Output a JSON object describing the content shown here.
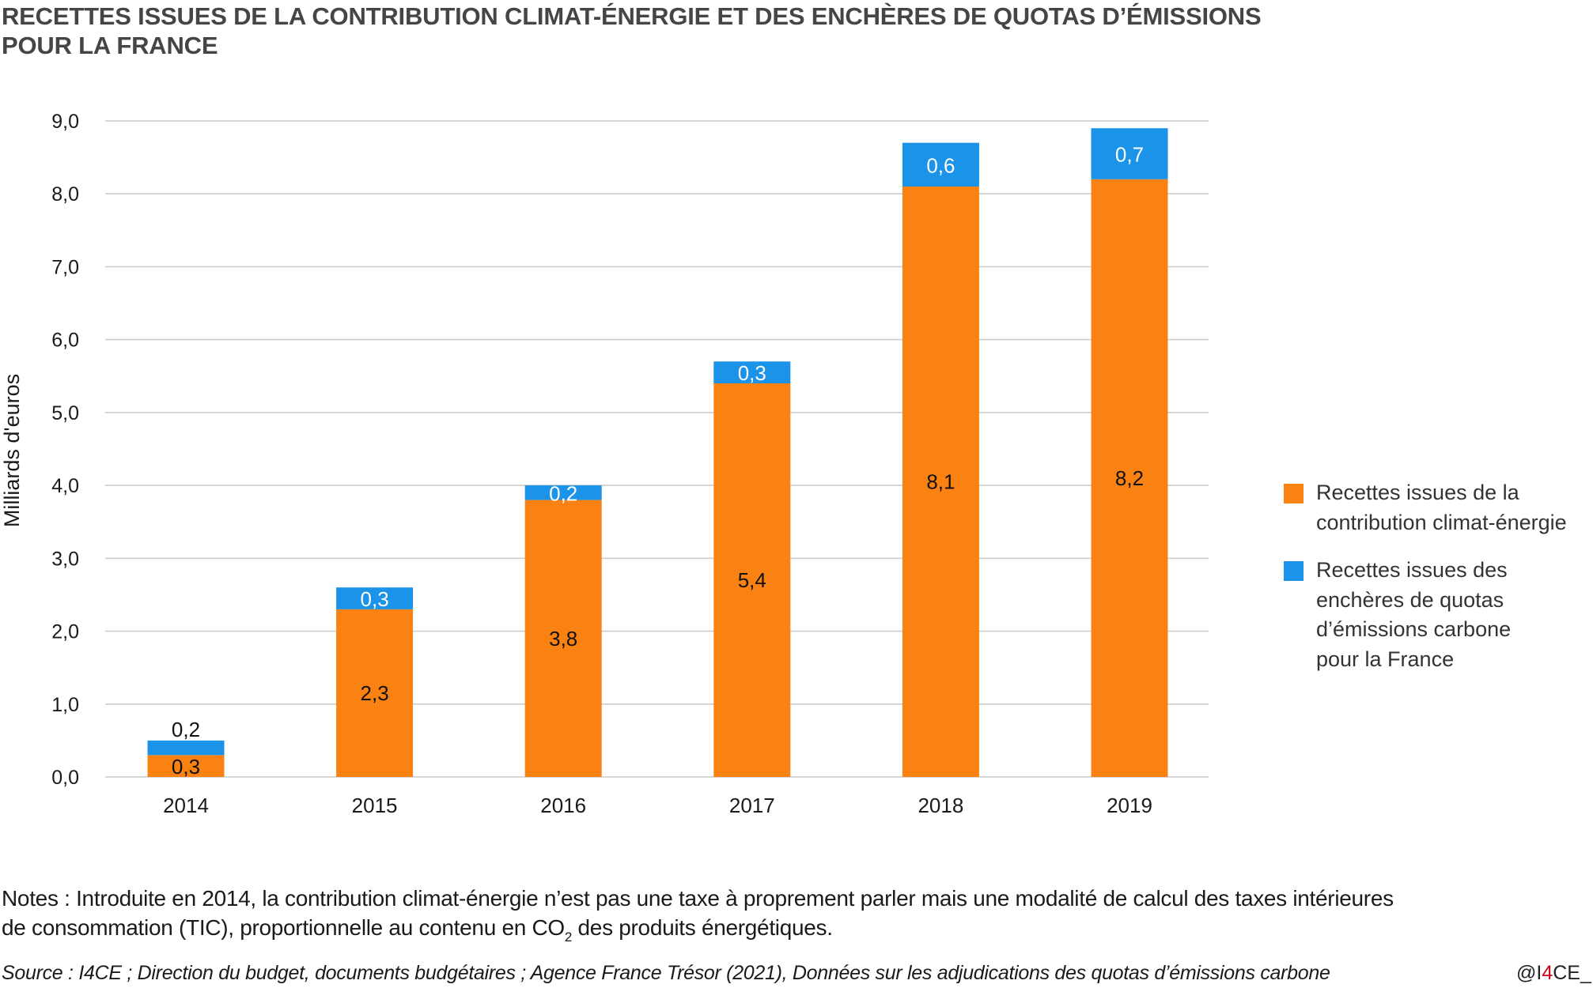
{
  "title": {
    "line1": "RECETTES ISSUES DE LA CONTRIBUTION CLIMAT-ÉNERGIE ET DES ENCHÈRES DE QUOTAS D’ÉMISSIONS",
    "line2": "POUR LA FRANCE"
  },
  "colors": {
    "orange": "#fa8212",
    "blue": "#1a93e8",
    "grid": "#cccccc",
    "handle_accent": "#d0021b"
  },
  "chart_data": {
    "type": "bar",
    "stacked": true,
    "title": "RECETTES ISSUES DE LA CONTRIBUTION CLIMAT-ÉNERGIE ET DES ENCHÈRES DE QUOTAS D’ÉMISSIONS POUR LA FRANCE",
    "xlabel": "",
    "ylabel": "Milliards d'euros",
    "ylim": [
      0,
      9
    ],
    "yticks": [
      0,
      1,
      2,
      3,
      4,
      5,
      6,
      7,
      8,
      9
    ],
    "ytick_labels": [
      "0,0",
      "1,0",
      "2,0",
      "3,0",
      "4,0",
      "5,0",
      "6,0",
      "7,0",
      "8,0",
      "9,0"
    ],
    "grid": true,
    "legend_position": "right",
    "categories": [
      "2014",
      "2015",
      "2016",
      "2017",
      "2018",
      "2019"
    ],
    "series": [
      {
        "name": "Recettes issues de la contribution climat-énergie",
        "color": "#fa8212",
        "values": [
          0.3,
          2.3,
          3.8,
          5.4,
          8.1,
          8.2
        ],
        "labels": [
          "0,3",
          "2,3",
          "3,8",
          "5,4",
          "8,1",
          "8,2"
        ]
      },
      {
        "name": "Recettes issues des enchères de quotas d’émissions carbone pour la France",
        "color": "#1a93e8",
        "values": [
          0.2,
          0.3,
          0.2,
          0.3,
          0.6,
          0.7
        ],
        "labels": [
          "0,2",
          "0,3",
          "0,2",
          "0,3",
          "0,6",
          "0,7"
        ]
      }
    ]
  },
  "legend": {
    "items": [
      {
        "lines": [
          "Recettes issues de la",
          "contribution climat-énergie"
        ],
        "color": "#fa8212"
      },
      {
        "lines": [
          "Recettes issues des",
          "enchères de quotas",
          "d’émissions carbone",
          "pour la France"
        ],
        "color": "#1a93e8"
      }
    ]
  },
  "notes": {
    "line1": "Notes : Introduite en 2014, la contribution climat-énergie n’est pas une taxe à proprement parler mais une modalité de calcul des taxes intérieures",
    "line2_before": "de consommation (TIC), proportionnelle au contenu en CO",
    "line2_sub": "2",
    "line2_after": " des produits énergétiques."
  },
  "source": "Source : I4CE ; Direction du budget, documents budgétaires ; Agence France Trésor (2021), Données sur les adjudications des quotas d’émissions carbone",
  "handle": {
    "prefix": "@I",
    "accent": "4",
    "suffix": "CE_"
  }
}
